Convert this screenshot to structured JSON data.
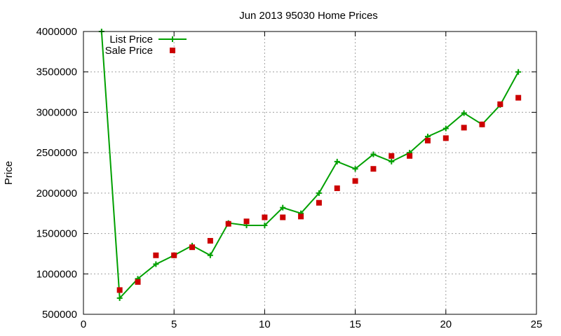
{
  "chart_data": {
    "type": "line",
    "title": "Jun 2013 95030 Home Prices",
    "xlabel": "",
    "ylabel": "Price",
    "xlim": [
      0,
      25
    ],
    "ylim": [
      500000,
      4000000
    ],
    "xticks": [
      0,
      5,
      10,
      15,
      20,
      25
    ],
    "yticks": [
      500000,
      1000000,
      1500000,
      2000000,
      2500000,
      3000000,
      3500000,
      4000000
    ],
    "grid": true,
    "legend_position": "top-left",
    "series": [
      {
        "name": "List Price",
        "style": "line-plus",
        "color": "#00a000",
        "x": [
          1,
          2,
          3,
          4,
          5,
          6,
          7,
          8,
          9,
          10,
          11,
          12,
          13,
          14,
          15,
          16,
          17,
          18,
          19,
          20,
          21,
          22,
          23,
          24
        ],
        "y": [
          4000000,
          700000,
          940000,
          1120000,
          1230000,
          1350000,
          1230000,
          1630000,
          1600000,
          1600000,
          1820000,
          1750000,
          2000000,
          2390000,
          2300000,
          2480000,
          2390000,
          2500000,
          2700000,
          2800000,
          2990000,
          2850000,
          3090000,
          3500000
        ]
      },
      {
        "name": "Sale Price",
        "style": "square",
        "color": "#cc0000",
        "x": [
          2,
          3,
          4,
          5,
          6,
          7,
          8,
          9,
          10,
          11,
          12,
          13,
          14,
          15,
          16,
          17,
          18,
          19,
          20,
          21,
          22,
          23,
          24
        ],
        "y": [
          800000,
          900000,
          1230000,
          1230000,
          1330000,
          1410000,
          1620000,
          1650000,
          1700000,
          1700000,
          1710000,
          1880000,
          2060000,
          2150000,
          2300000,
          2460000,
          2460000,
          2650000,
          2680000,
          2810000,
          2850000,
          3100000,
          3180000
        ]
      }
    ]
  }
}
